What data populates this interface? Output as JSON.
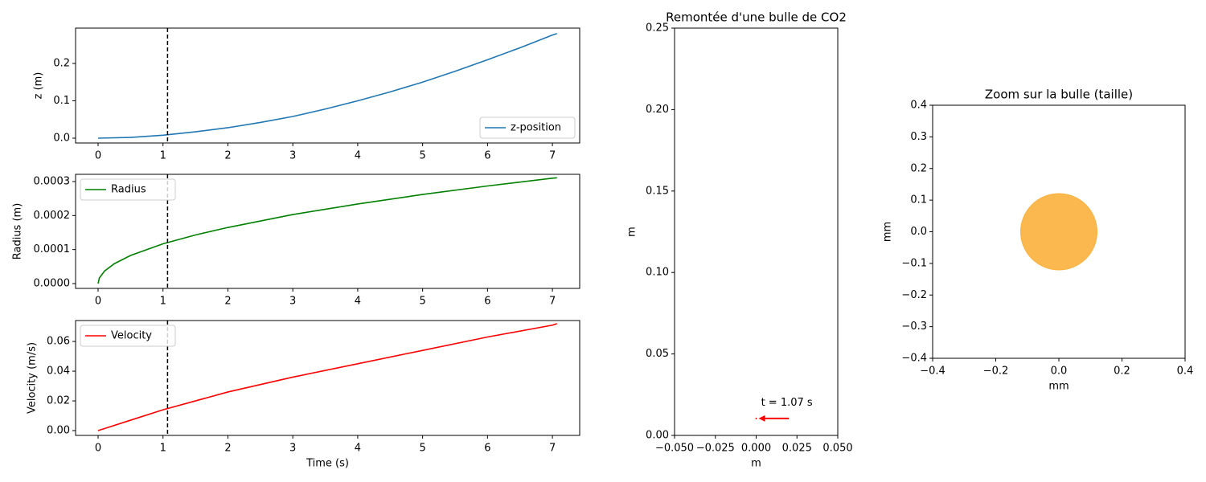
{
  "chart_data": [
    {
      "type": "line",
      "ylabel": "z (m)",
      "vline_x": 1.07,
      "x": [
        0,
        0.5,
        1,
        1.5,
        2,
        2.5,
        3,
        3.5,
        4,
        4.5,
        5,
        5.5,
        6,
        6.5,
        7,
        7.07
      ],
      "series": [
        {
          "name": "z-position",
          "color": "#1f77b4",
          "values": [
            0,
            0.002,
            0.008,
            0.017,
            0.028,
            0.042,
            0.058,
            0.078,
            0.1,
            0.124,
            0.15,
            0.179,
            0.21,
            0.242,
            0.276,
            0.28
          ]
        }
      ],
      "xlim": [
        -0.347,
        7.42
      ],
      "xticks": [
        0,
        1,
        2,
        3,
        4,
        5,
        6,
        7
      ],
      "ylim": [
        -0.0129,
        0.2946
      ],
      "yticks": [
        {
          "value": 0,
          "label": "0.0"
        },
        0.1,
        0.2
      ],
      "legend": "lower right"
    },
    {
      "type": "line",
      "ylabel": "Radius (m)",
      "vline_x": 1.07,
      "x": [
        0,
        0.02,
        0.1,
        0.25,
        0.5,
        1,
        1.5,
        2,
        3,
        4,
        5,
        6,
        7,
        7.07
      ],
      "series": [
        {
          "name": "Radius",
          "color": "#008000",
          "values": [
            0,
            1.65e-05,
            3.7e-05,
            5.85e-05,
            8.27e-05,
            0.000117,
            0.000143,
            0.000165,
            0.000203,
            0.000234,
            0.000262,
            0.000287,
            0.00031,
            0.000311
          ]
        }
      ],
      "xlim": [
        -0.347,
        7.42
      ],
      "xticks": [
        0,
        1,
        2,
        3,
        4,
        5,
        6,
        7
      ],
      "ylim": [
        -1.42e-05,
        0.0003213
      ],
      "yticks": [
        {
          "value": 0,
          "label": "0.0000"
        },
        0.0001,
        0.0002,
        0.0003
      ],
      "legend": "upper left"
    },
    {
      "type": "line",
      "ylabel": "Velocity (m/s)",
      "xlabel": "Time (s)",
      "vline_x": 1.07,
      "x": [
        0,
        0.5,
        1,
        2,
        3,
        4,
        5,
        6,
        7,
        7.07
      ],
      "series": [
        {
          "name": "Velocity",
          "color": "#ff0000",
          "values": [
            0,
            0.007,
            0.014,
            0.026,
            0.036,
            0.045,
            0.054,
            0.063,
            0.071,
            0.072
          ]
        }
      ],
      "xlim": [
        -0.347,
        7.42
      ],
      "xticks": [
        0,
        1,
        2,
        3,
        4,
        5,
        6,
        7
      ],
      "ylim": [
        -0.00324,
        0.0741
      ],
      "yticks": [
        {
          "value": 0,
          "label": "0.00"
        },
        {
          "value": 0.02,
          "label": "0.02"
        },
        {
          "value": 0.04,
          "label": "0.04"
        },
        {
          "value": 0.06,
          "label": "0.06"
        }
      ],
      "legend": "upper left"
    },
    {
      "type": "scatter",
      "title": "Remontée d'une bulle de CO2",
      "xlabel": "m",
      "ylabel": "m",
      "x": [
        0
      ],
      "values": [
        0.0104
      ],
      "color": "#ff0000",
      "annotation": {
        "text": "t = 1.07 s",
        "x": 0.003,
        "y": 0.02,
        "arrow_from_x": 0.02
      },
      "xlim": [
        -0.05,
        0.05
      ],
      "xticks": [
        {
          "value": -0.05,
          "label": "−0.050"
        },
        {
          "value": -0.025,
          "label": "−0.025"
        },
        {
          "value": 0,
          "label": "0.000"
        },
        {
          "value": 0.025,
          "label": "0.025"
        },
        {
          "value": 0.05,
          "label": "0.050"
        }
      ],
      "ylim": [
        0,
        0.25
      ],
      "yticks": [
        {
          "value": 0,
          "label": "0.00"
        },
        {
          "value": 0.05,
          "label": "0.05"
        },
        {
          "value": 0.1,
          "label": "0.10"
        },
        {
          "value": 0.15,
          "label": "0.15"
        },
        {
          "value": 0.2,
          "label": "0.20"
        },
        {
          "value": 0.25,
          "label": "0.25"
        }
      ]
    },
    {
      "type": "bubble",
      "title": "Zoom sur la bulle (taille)",
      "xlabel": "mm",
      "ylabel": "mm",
      "x": [
        0
      ],
      "values": [
        0
      ],
      "sizes": [
        0.121
      ],
      "color": "#fbb03b",
      "xlim": [
        -0.4,
        0.4
      ],
      "xticks": [
        {
          "value": -0.4,
          "label": "−0.4"
        },
        {
          "value": -0.2,
          "label": "−0.2"
        },
        {
          "value": 0,
          "label": "0.0"
        },
        0.2,
        0.4
      ],
      "ylim": [
        -0.4,
        0.4
      ],
      "yticks": [
        {
          "value": -0.4,
          "label": "−0.4"
        },
        {
          "value": -0.3,
          "label": "−0.3"
        },
        {
          "value": -0.2,
          "label": "−0.2"
        },
        {
          "value": -0.1,
          "label": "−0.1"
        },
        {
          "value": 0,
          "label": "0.0"
        },
        0.1,
        0.2,
        0.3,
        0.4
      ]
    }
  ]
}
